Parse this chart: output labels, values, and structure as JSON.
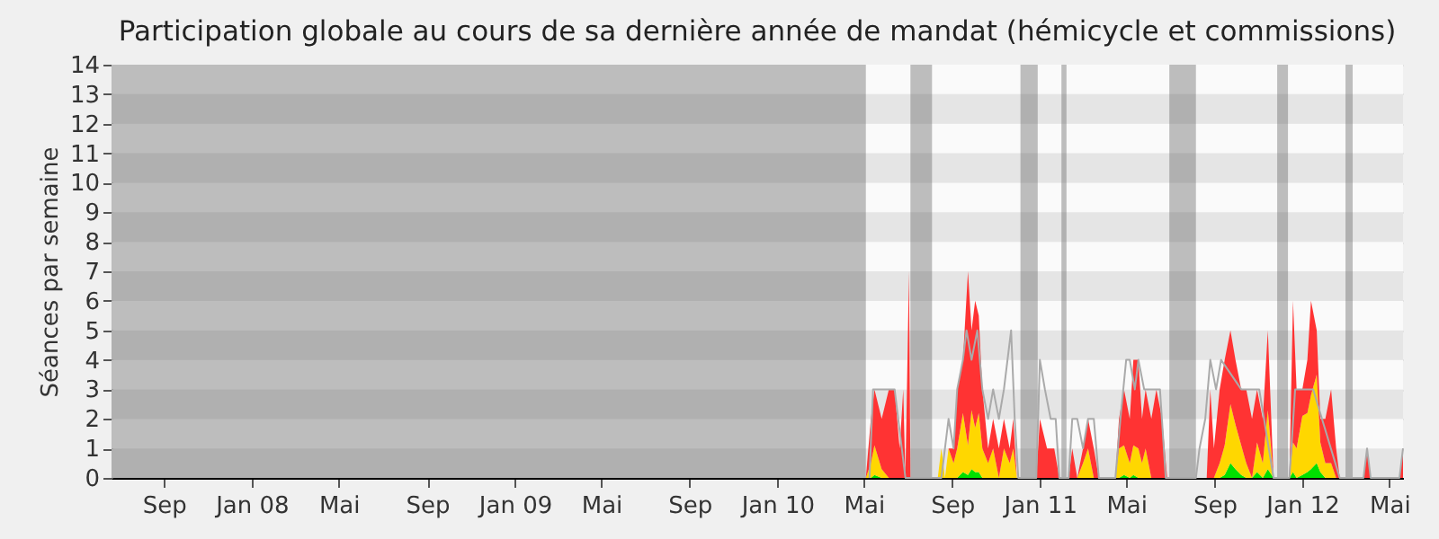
{
  "chart_data": {
    "type": "area",
    "stacked": true,
    "title": "Participation globale au cours de sa dernière année de mandat (hémicycle et commissions)",
    "ylabel": "Séances par semaine",
    "x": [
      "2010-05-04",
      "2010-05-11",
      "2010-05-16",
      "2010-05-26",
      "2010-06-05",
      "2010-06-13",
      "2010-06-20",
      "2010-06-25",
      "2010-06-28",
      "2010-07-03",
      "2010-07-05",
      "2010-08-12",
      "2010-08-17",
      "2010-08-22",
      "2010-08-27",
      "2010-09-03",
      "2010-09-08",
      "2010-09-16",
      "2010-09-23",
      "2010-09-28",
      "2010-10-03",
      "2010-10-08",
      "2010-10-13",
      "2010-10-21",
      "2010-10-28",
      "2010-11-05",
      "2010-11-12",
      "2010-11-20",
      "2010-11-25",
      "2010-11-30",
      "2010-12-27",
      "2011-01-01",
      "2011-01-11",
      "2011-01-21",
      "2011-01-28",
      "2011-02-10",
      "2011-02-15",
      "2011-02-22",
      "2011-03-02",
      "2011-03-09",
      "2011-03-17",
      "2011-03-24",
      "2011-04-16",
      "2011-04-21",
      "2011-04-28",
      "2011-05-06",
      "2011-05-11",
      "2011-05-18",
      "2011-05-23",
      "2011-05-28",
      "2011-06-05",
      "2011-06-12",
      "2011-06-20",
      "2011-06-27",
      "2011-08-21",
      "2011-08-26",
      "2011-08-31",
      "2011-09-08",
      "2011-09-15",
      "2011-09-23",
      "2011-09-30",
      "2011-10-08",
      "2011-10-15",
      "2011-10-23",
      "2011-10-30",
      "2011-11-07",
      "2011-11-14",
      "2011-11-22",
      "2011-12-14",
      "2011-12-19",
      "2011-12-24",
      "2012-01-01",
      "2012-01-08",
      "2012-01-13",
      "2012-01-21",
      "2012-01-26",
      "2012-02-02",
      "2012-02-10",
      "2012-02-17",
      "2012-02-22",
      "2012-03-26",
      "2012-03-31",
      "2012-04-05",
      "2012-05-15",
      "2012-05-20"
    ],
    "series": [
      {
        "color": "#00e000",
        "values": [
          0,
          0,
          0.1,
          0,
          0,
          0,
          0,
          0,
          0,
          0,
          0,
          0,
          0,
          0,
          0,
          0,
          0,
          0.2,
          0.1,
          0.3,
          0.2,
          0.2,
          0,
          0,
          0,
          0,
          0,
          0,
          0,
          0,
          0,
          0,
          0,
          0,
          0,
          0,
          0,
          0,
          0,
          0,
          0,
          0,
          0,
          0,
          0.1,
          0,
          0.1,
          0,
          0,
          0,
          0,
          0,
          0,
          0,
          0,
          0,
          0,
          0,
          0.1,
          0.5,
          0.3,
          0.1,
          0,
          0,
          0.2,
          0,
          0.3,
          0,
          0,
          0.2,
          0,
          0.1,
          0.2,
          0.3,
          0.5,
          0.2,
          0,
          0,
          0,
          0,
          0,
          0,
          0,
          0,
          0
        ]
      },
      {
        "color": "#ffd700",
        "values": [
          0,
          0.5,
          1,
          0.3,
          0,
          0,
          0,
          0,
          0,
          0,
          0,
          0,
          1,
          0,
          1,
          0.5,
          1,
          2,
          1,
          2,
          1.5,
          2,
          1,
          0.5,
          1,
          0,
          1,
          0.5,
          1,
          0,
          0,
          0,
          0,
          0,
          0,
          0,
          0,
          0,
          0.5,
          1,
          0,
          0,
          0,
          1,
          1,
          0.5,
          1,
          1,
          0.5,
          1,
          0,
          0,
          0,
          0,
          0,
          0,
          0,
          0.5,
          1,
          2,
          1.5,
          1,
          0.5,
          0,
          1,
          0.5,
          2,
          0,
          0,
          1,
          1,
          2,
          2,
          2.5,
          3,
          1,
          0.5,
          0.5,
          0,
          0,
          0,
          0,
          0,
          0,
          0
        ]
      },
      {
        "color": "#ff3333",
        "values": [
          0,
          1.5,
          1.9,
          1.7,
          3,
          3,
          1,
          3,
          0,
          7,
          0,
          0,
          0,
          0,
          0,
          0.5,
          2,
          1.8,
          5.9,
          2.7,
          4.3,
          3.3,
          2,
          0.5,
          1,
          1,
          1,
          0.5,
          1,
          0,
          0,
          2,
          1,
          1,
          0,
          0,
          1,
          0,
          0.5,
          1,
          1,
          0,
          0,
          1,
          1.9,
          1.5,
          2.9,
          3,
          1.5,
          2,
          2,
          3,
          2,
          0,
          0,
          3,
          1,
          2.5,
          2.9,
          2.5,
          2.2,
          1.9,
          2.5,
          2,
          1.8,
          1.5,
          2.7,
          0,
          0,
          4.8,
          2,
          0.9,
          1.8,
          3.2,
          1.5,
          0.8,
          1.5,
          2.5,
          1,
          0,
          0,
          1,
          0,
          0,
          1
        ]
      },
      {
        "type": "line",
        "color": "#aaaaaa",
        "x": [
          "2010-05-09",
          "2010-05-14",
          "2010-06-13",
          "2010-06-28",
          "2010-08-17",
          "2010-08-22",
          "2010-08-27",
          "2010-09-03",
          "2010-09-08",
          "2010-09-16",
          "2010-09-21",
          "2010-09-28",
          "2010-10-06",
          "2010-10-13",
          "2010-10-21",
          "2010-10-28",
          "2010-11-05",
          "2010-11-12",
          "2010-11-22",
          "2010-11-27",
          "2010-12-02",
          "2010-12-27",
          "2011-01-01",
          "2011-01-08",
          "2011-01-16",
          "2011-01-23",
          "2011-01-28",
          "2011-02-10",
          "2011-02-15",
          "2011-02-22",
          "2011-03-02",
          "2011-03-09",
          "2011-03-17",
          "2011-03-24",
          "2011-04-16",
          "2011-04-23",
          "2011-05-01",
          "2011-05-06",
          "2011-05-13",
          "2011-05-18",
          "2011-05-26",
          "2011-06-05",
          "2011-06-17",
          "2011-06-25",
          "2011-08-06",
          "2011-08-11",
          "2011-08-19",
          "2011-08-26",
          "2011-09-03",
          "2011-09-10",
          "2011-10-08",
          "2011-11-02",
          "2011-11-22",
          "2011-12-14",
          "2011-12-22",
          "2012-01-16",
          "2012-02-22",
          "2012-03-26",
          "2012-03-31",
          "2012-04-05",
          "2012-05-15",
          "2012-05-20"
        ],
        "values": [
          0,
          3,
          3,
          0,
          0,
          1,
          2,
          1,
          3,
          4,
          5,
          4,
          5,
          3,
          2,
          3,
          2,
          3,
          5,
          2,
          0,
          0,
          4,
          3,
          2,
          2,
          0,
          0,
          2,
          2,
          1,
          2,
          2,
          0,
          0,
          2,
          4,
          4,
          3,
          4,
          3,
          3,
          3,
          0,
          0,
          1,
          2,
          4,
          3,
          4,
          3,
          3,
          0,
          0,
          3,
          3,
          0,
          0,
          1,
          0,
          0,
          1
        ]
      }
    ],
    "xlim": [
      "2007-06-20",
      "2012-05-20"
    ],
    "xticks": [
      {
        "value": "2007-09-01",
        "label": "Sep"
      },
      {
        "value": "2008-01-01",
        "label": "Jan 08"
      },
      {
        "value": "2008-05-01",
        "label": "Mai"
      },
      {
        "value": "2008-09-01",
        "label": "Sep"
      },
      {
        "value": "2009-01-01",
        "label": "Jan 09"
      },
      {
        "value": "2009-05-01",
        "label": "Mai"
      },
      {
        "value": "2009-09-01",
        "label": "Sep"
      },
      {
        "value": "2010-01-01",
        "label": "Jan 10"
      },
      {
        "value": "2010-05-01",
        "label": "Mai"
      },
      {
        "value": "2010-09-01",
        "label": "Sep"
      },
      {
        "value": "2011-01-01",
        "label": "Jan 11"
      },
      {
        "value": "2011-05-01",
        "label": "Mai"
      },
      {
        "value": "2011-09-01",
        "label": "Sep"
      },
      {
        "value": "2012-01-01",
        "label": "Jan 12"
      },
      {
        "value": "2012-05-01",
        "label": "Mai"
      }
    ],
    "ylim": [
      0,
      14
    ],
    "yticks": [
      0,
      1,
      2,
      3,
      4,
      5,
      6,
      7,
      8,
      9,
      10,
      11,
      12,
      13,
      14
    ],
    "grid": "y",
    "bands": [
      {
        "axis": "x",
        "from": "2007-06-20",
        "to": "2010-05-04",
        "color": "#595959"
      },
      {
        "axis": "x",
        "from": "2010-07-05",
        "to": "2010-08-04",
        "color": "#595959"
      },
      {
        "axis": "x",
        "from": "2010-12-05",
        "to": "2010-12-29",
        "color": "#595959"
      },
      {
        "axis": "x",
        "from": "2011-01-31",
        "to": "2011-02-07",
        "color": "#595959"
      },
      {
        "axis": "x",
        "from": "2011-06-30",
        "to": "2011-08-06",
        "color": "#595959"
      },
      {
        "axis": "x",
        "from": "2011-11-27",
        "to": "2011-12-12",
        "color": "#595959"
      },
      {
        "axis": "x",
        "from": "2012-03-01",
        "to": "2012-03-11",
        "color": "#595959"
      }
    ]
  }
}
